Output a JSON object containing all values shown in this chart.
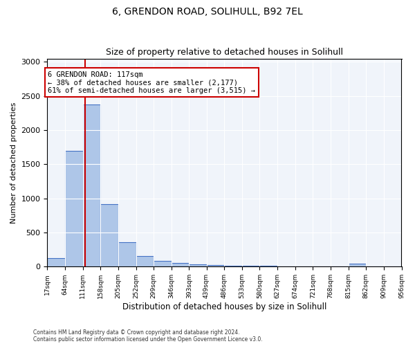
{
  "title1": "6, GRENDON ROAD, SOLIHULL, B92 7EL",
  "title2": "Size of property relative to detached houses in Solihull",
  "xlabel": "Distribution of detached houses by size in Solihull",
  "ylabel": "Number of detached properties",
  "bin_edges": [
    17,
    64,
    111,
    158,
    205,
    252,
    299,
    346,
    393,
    439,
    486,
    533,
    580,
    627,
    674,
    721,
    768,
    815,
    862,
    909,
    956
  ],
  "bin_labels": [
    "17sqm",
    "64sqm",
    "111sqm",
    "158sqm",
    "205sqm",
    "252sqm",
    "299sqm",
    "346sqm",
    "393sqm",
    "439sqm",
    "486sqm",
    "533sqm",
    "580sqm",
    "627sqm",
    "674sqm",
    "721sqm",
    "768sqm",
    "815sqm",
    "862sqm",
    "909sqm",
    "956sqm"
  ],
  "bar_heights": [
    125,
    1700,
    2380,
    920,
    360,
    155,
    80,
    55,
    30,
    20,
    15,
    12,
    10,
    8,
    8,
    5,
    5,
    40,
    5,
    5
  ],
  "bar_color": "#aec6e8",
  "bar_edge_color": "#4472c4",
  "property_size": 117,
  "vline_color": "#cc0000",
  "annotation_text": "6 GRENDON ROAD: 117sqm\n← 38% of detached houses are smaller (2,177)\n61% of semi-detached houses are larger (3,515) →",
  "annotation_box_color": "#cc0000",
  "ylim": [
    0,
    3050
  ],
  "footnote1": "Contains HM Land Registry data © Crown copyright and database right 2024.",
  "footnote2": "Contains public sector information licensed under the Open Government Licence v3.0.",
  "background_color": "#f0f4fa"
}
